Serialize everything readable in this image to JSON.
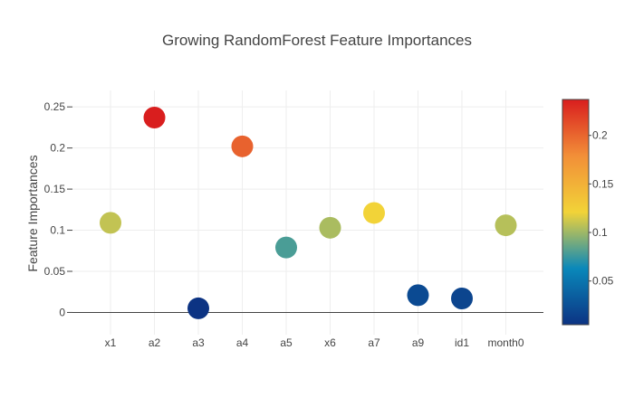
{
  "chart_data": {
    "type": "scatter",
    "title": "Growing RandomForest Feature Importances",
    "xlabel": "",
    "ylabel": "Feature Importances",
    "categories": [
      "x1",
      "a2",
      "a3",
      "a4",
      "a5",
      "x6",
      "a7",
      "a9",
      "id1",
      "month0"
    ],
    "values": [
      0.109,
      0.237,
      0.005,
      0.202,
      0.079,
      0.103,
      0.121,
      0.021,
      0.017,
      0.106
    ],
    "ylim": [
      -0.027,
      0.27
    ],
    "yticks": [
      0,
      0.05,
      0.1,
      0.15,
      0.2,
      0.25
    ],
    "ytick_labels": [
      "0",
      "0.05",
      "0.1",
      "0.15",
      "0.2",
      "0.25"
    ],
    "grid": true,
    "colorscale": {
      "name": "Portland",
      "range": [
        0.005,
        0.237
      ],
      "ticks": [
        0.05,
        0.1,
        0.15,
        0.2
      ],
      "tick_labels": [
        "0.05",
        "0.1",
        "0.15",
        "0.2"
      ],
      "stops": [
        [
          0.0,
          "#0c3383"
        ],
        [
          0.25,
          "#0a88ba"
        ],
        [
          0.5,
          "#f2d338"
        ],
        [
          0.75,
          "#f28f38"
        ],
        [
          1.0,
          "#d91e1e"
        ]
      ]
    },
    "legend": "colorbar-right"
  }
}
